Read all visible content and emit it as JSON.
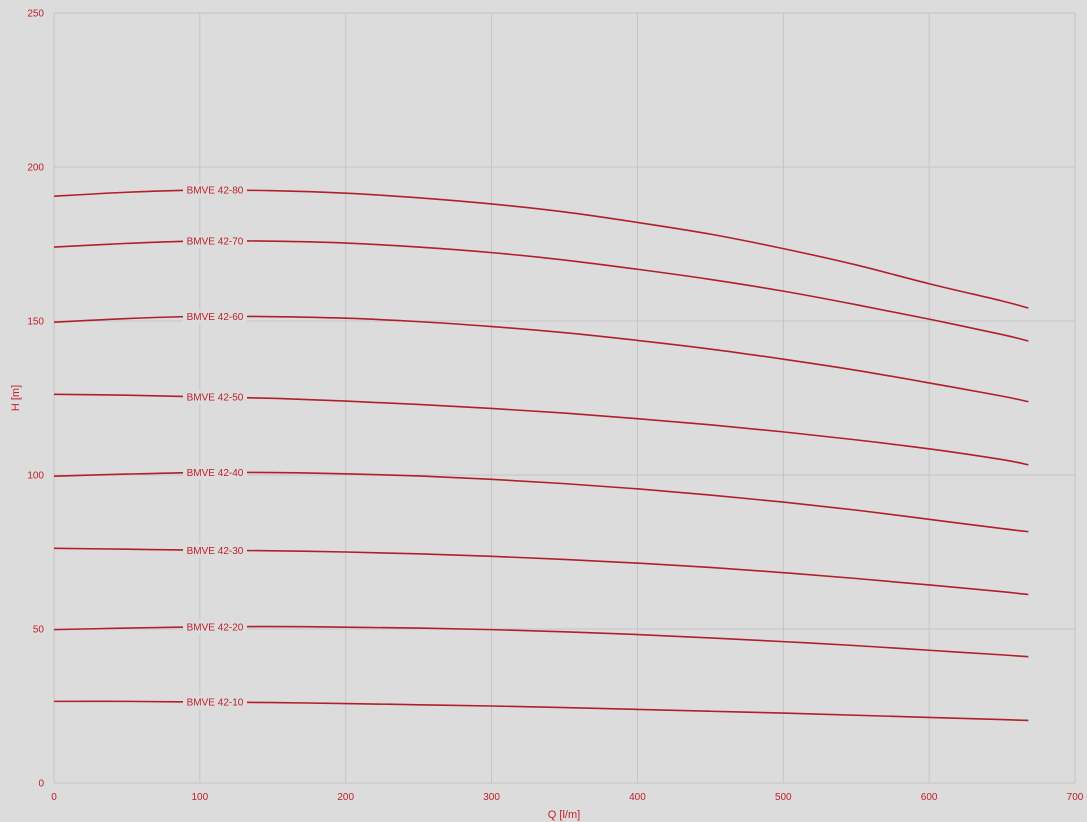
{
  "chart_data": {
    "type": "line",
    "title": "",
    "xlabel": "Q [l/m]",
    "ylabel": "H [m]",
    "xlim": [
      0,
      700
    ],
    "ylim": [
      0,
      250
    ],
    "x_ticks": [
      0,
      100,
      200,
      300,
      400,
      500,
      600,
      700
    ],
    "y_ticks": [
      0,
      50,
      100,
      150,
      200,
      250
    ],
    "grid": true,
    "colors": {
      "background": "#dcdcdc",
      "grid": "#c4c4c4",
      "line": "#b11f2a",
      "text": "#c0202a"
    },
    "series": [
      {
        "name": "BMVE 42-80",
        "x": [
          0,
          50,
          100,
          150,
          200,
          250,
          300,
          350,
          400,
          450,
          500,
          550,
          600,
          650,
          668
        ],
        "y": [
          190.5,
          191.8,
          192.5,
          192.3,
          191.5,
          190.0,
          188.0,
          185.4,
          182.0,
          178.2,
          173.5,
          168.2,
          162.1,
          156.5,
          154.2
        ]
      },
      {
        "name": "BMVE 42-70",
        "x": [
          0,
          50,
          100,
          150,
          200,
          250,
          300,
          350,
          400,
          450,
          500,
          550,
          600,
          650,
          668
        ],
        "y": [
          174.0,
          175.2,
          176.0,
          175.9,
          175.3,
          174.0,
          172.2,
          169.8,
          166.8,
          163.5,
          159.7,
          155.3,
          150.6,
          145.6,
          143.5
        ]
      },
      {
        "name": "BMVE 42-60",
        "x": [
          0,
          50,
          100,
          150,
          200,
          250,
          300,
          350,
          400,
          450,
          500,
          550,
          600,
          650,
          668
        ],
        "y": [
          149.6,
          150.8,
          151.5,
          151.4,
          150.9,
          149.8,
          148.2,
          146.2,
          143.7,
          140.9,
          137.6,
          134.0,
          129.9,
          125.6,
          123.8
        ]
      },
      {
        "name": "BMVE 42-50",
        "x": [
          0,
          50,
          100,
          150,
          200,
          250,
          300,
          350,
          400,
          450,
          500,
          550,
          600,
          650,
          668
        ],
        "y": [
          126.2,
          125.9,
          125.4,
          124.9,
          124.0,
          122.9,
          121.6,
          120.1,
          118.3,
          116.3,
          114.0,
          111.4,
          108.5,
          105.0,
          103.3
        ]
      },
      {
        "name": "BMVE 42-40",
        "x": [
          0,
          50,
          100,
          150,
          200,
          250,
          300,
          350,
          400,
          450,
          500,
          550,
          600,
          650,
          668
        ],
        "y": [
          99.6,
          100.3,
          100.8,
          100.8,
          100.4,
          99.7,
          98.6,
          97.2,
          95.5,
          93.5,
          91.2,
          88.6,
          85.6,
          82.6,
          81.6
        ]
      },
      {
        "name": "BMVE 42-30",
        "x": [
          0,
          50,
          100,
          150,
          200,
          250,
          300,
          350,
          400,
          450,
          500,
          550,
          600,
          650,
          668
        ],
        "y": [
          76.2,
          75.9,
          75.6,
          75.4,
          75.0,
          74.4,
          73.6,
          72.6,
          71.4,
          70.0,
          68.3,
          66.4,
          64.3,
          62.1,
          61.2
        ]
      },
      {
        "name": "BMVE 42-20",
        "x": [
          0,
          50,
          100,
          150,
          200,
          250,
          300,
          350,
          400,
          450,
          500,
          550,
          600,
          650,
          668
        ],
        "y": [
          49.8,
          50.3,
          50.7,
          50.8,
          50.6,
          50.3,
          49.8,
          49.1,
          48.2,
          47.1,
          45.9,
          44.6,
          43.1,
          41.6,
          41.0
        ]
      },
      {
        "name": "BMVE 42-10",
        "x": [
          0,
          50,
          100,
          150,
          200,
          250,
          300,
          350,
          400,
          450,
          500,
          550,
          600,
          650,
          668
        ],
        "y": [
          26.5,
          26.5,
          26.3,
          26.1,
          25.8,
          25.4,
          25.0,
          24.5,
          23.9,
          23.3,
          22.7,
          22.0,
          21.3,
          20.6,
          20.3
        ]
      }
    ]
  }
}
